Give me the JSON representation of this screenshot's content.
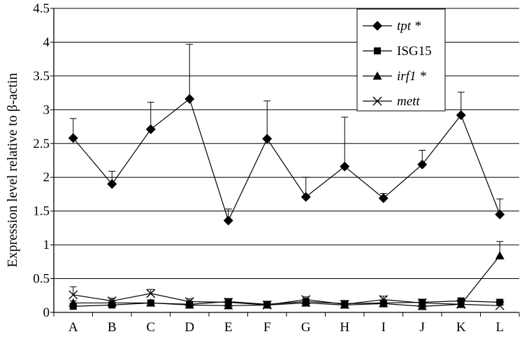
{
  "chart_data": {
    "type": "line",
    "title": "",
    "xlabel": "",
    "ylabel": "Expression level relative to β-actin",
    "categories": [
      "A",
      "B",
      "C",
      "D",
      "E",
      "F",
      "G",
      "H",
      "I",
      "J",
      "K",
      "L"
    ],
    "ylim": [
      0,
      4.5
    ],
    "yticks": [
      "0",
      "0.5",
      "1",
      "1.5",
      "2",
      "2.5",
      "3",
      "3.5",
      "4",
      "4.5"
    ],
    "grid": "horizontal",
    "legend_position": "top-right",
    "series": [
      {
        "name": "tpt *",
        "italic": true,
        "marker": "diamond",
        "values": [
          2.58,
          1.9,
          2.71,
          3.16,
          1.36,
          2.57,
          1.71,
          2.16,
          1.69,
          2.19,
          2.92,
          1.45
        ],
        "error_upper": [
          2.87,
          2.09,
          3.11,
          3.97,
          1.53,
          3.13,
          2.0,
          2.89,
          1.76,
          2.4,
          3.26,
          1.68
        ]
      },
      {
        "name": "ISG15",
        "italic": false,
        "marker": "square",
        "values": [
          0.09,
          0.11,
          0.14,
          0.12,
          0.16,
          0.12,
          0.16,
          0.13,
          0.14,
          0.15,
          0.17,
          0.15
        ],
        "error_upper": [
          0.13,
          0.15,
          0.18,
          0.16,
          0.19,
          0.14,
          0.2,
          0.16,
          0.17,
          0.18,
          0.21,
          0.19
        ]
      },
      {
        "name": "irf1 *",
        "italic": true,
        "marker": "triangle",
        "values": [
          0.14,
          0.14,
          0.14,
          0.11,
          0.1,
          0.11,
          0.14,
          0.11,
          0.13,
          0.09,
          0.12,
          0.84
        ],
        "error_upper": [
          0.17,
          0.17,
          0.17,
          0.14,
          0.13,
          0.14,
          0.18,
          0.14,
          0.16,
          0.12,
          0.15,
          1.05
        ]
      },
      {
        "name": "mett",
        "italic": true,
        "marker": "x",
        "values": [
          0.26,
          0.17,
          0.28,
          0.16,
          0.15,
          0.11,
          0.19,
          0.12,
          0.19,
          0.14,
          0.12,
          0.1
        ],
        "error_upper": [
          0.38,
          0.21,
          0.34,
          0.2,
          0.19,
          0.14,
          0.23,
          0.15,
          0.24,
          0.17,
          0.16,
          0.14
        ]
      }
    ]
  }
}
